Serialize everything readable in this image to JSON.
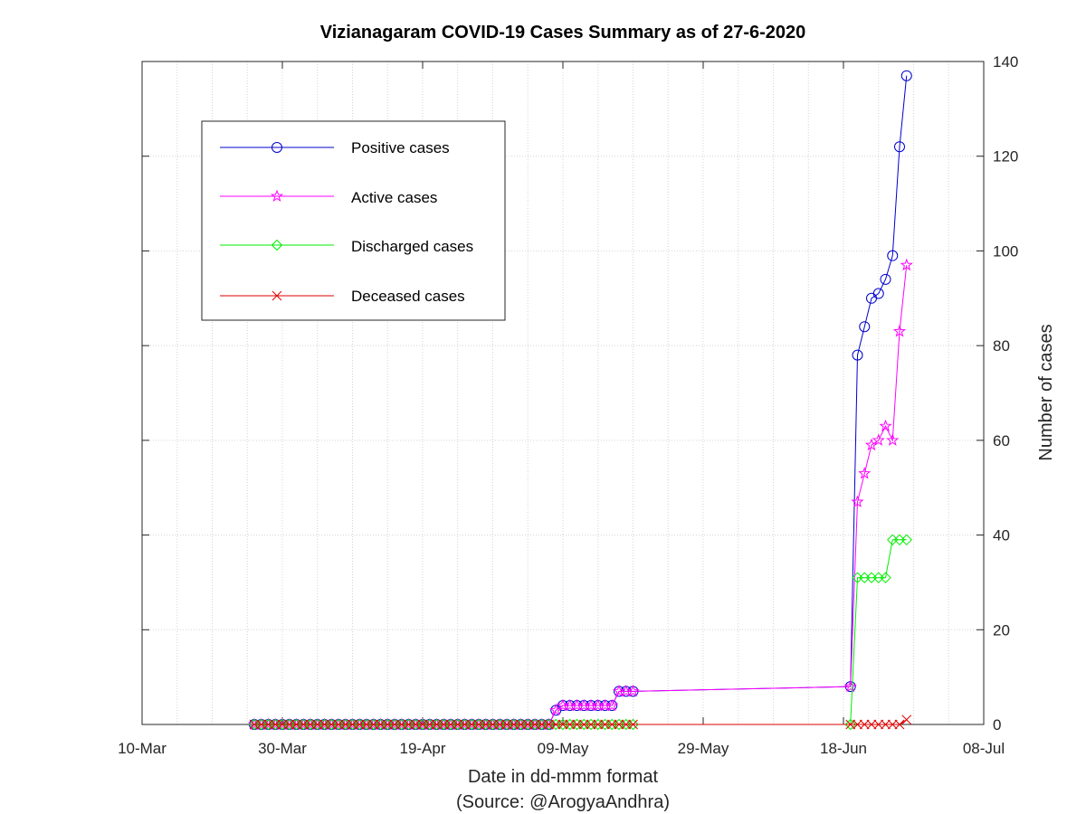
{
  "chart_data": {
    "type": "line",
    "title": "Vizianagaram COVID-19 Cases Summary as of 27-6-2020",
    "xlabel": "Date in dd-mmm format",
    "source": "(Source: @ArogyaAndhra)",
    "ylabel": "Number of cases",
    "xlim": [
      "2020-03-10",
      "2020-07-08"
    ],
    "ylim": [
      0,
      140
    ],
    "x_ticks": [
      "10-Mar",
      "30-Mar",
      "19-Apr",
      "09-May",
      "29-May",
      "18-Jun",
      "08-Jul"
    ],
    "y_ticks": [
      0,
      20,
      40,
      60,
      80,
      100,
      120,
      140
    ],
    "y_axis_side": "right",
    "grid": true,
    "legend_position": "top-left",
    "x": [
      "2020-03-26",
      "2020-03-27",
      "2020-03-28",
      "2020-03-29",
      "2020-03-30",
      "2020-03-31",
      "2020-04-01",
      "2020-04-02",
      "2020-04-03",
      "2020-04-04",
      "2020-04-05",
      "2020-04-06",
      "2020-04-07",
      "2020-04-08",
      "2020-04-09",
      "2020-04-10",
      "2020-04-11",
      "2020-04-12",
      "2020-04-13",
      "2020-04-14",
      "2020-04-15",
      "2020-04-16",
      "2020-04-17",
      "2020-04-18",
      "2020-04-19",
      "2020-04-20",
      "2020-04-21",
      "2020-04-22",
      "2020-04-23",
      "2020-04-24",
      "2020-04-25",
      "2020-04-26",
      "2020-04-27",
      "2020-04-28",
      "2020-04-29",
      "2020-04-30",
      "2020-05-01",
      "2020-05-02",
      "2020-05-03",
      "2020-05-04",
      "2020-05-05",
      "2020-05-06",
      "2020-05-07",
      "2020-05-08",
      "2020-05-09",
      "2020-05-10",
      "2020-05-11",
      "2020-05-12",
      "2020-05-13",
      "2020-05-14",
      "2020-05-15",
      "2020-05-16",
      "2020-05-17",
      "2020-05-18",
      "2020-05-19",
      "2020-06-19",
      "2020-06-20",
      "2020-06-21",
      "2020-06-22",
      "2020-06-23",
      "2020-06-24",
      "2020-06-25",
      "2020-06-26",
      "2020-06-27"
    ],
    "series": [
      {
        "name": "Positive cases",
        "color": "#0000cc",
        "marker": "circle",
        "values": [
          0,
          0,
          0,
          0,
          0,
          0,
          0,
          0,
          0,
          0,
          0,
          0,
          0,
          0,
          0,
          0,
          0,
          0,
          0,
          0,
          0,
          0,
          0,
          0,
          0,
          0,
          0,
          0,
          0,
          0,
          0,
          0,
          0,
          0,
          0,
          0,
          0,
          0,
          0,
          0,
          0,
          0,
          0,
          3,
          4,
          4,
          4,
          4,
          4,
          4,
          4,
          4,
          7,
          7,
          7,
          8,
          78,
          84,
          90,
          91,
          94,
          99,
          122,
          137
        ]
      },
      {
        "name": "Active cases",
        "color": "#ff00ff",
        "marker": "star",
        "values": [
          0,
          0,
          0,
          0,
          0,
          0,
          0,
          0,
          0,
          0,
          0,
          0,
          0,
          0,
          0,
          0,
          0,
          0,
          0,
          0,
          0,
          0,
          0,
          0,
          0,
          0,
          0,
          0,
          0,
          0,
          0,
          0,
          0,
          0,
          0,
          0,
          0,
          0,
          0,
          0,
          0,
          0,
          0,
          3,
          4,
          4,
          4,
          4,
          4,
          4,
          4,
          4,
          7,
          7,
          7,
          8,
          47,
          53,
          59,
          60,
          63,
          60,
          83,
          97
        ]
      },
      {
        "name": "Discharged cases",
        "color": "#00ee00",
        "marker": "diamond",
        "values": [
          0,
          0,
          0,
          0,
          0,
          0,
          0,
          0,
          0,
          0,
          0,
          0,
          0,
          0,
          0,
          0,
          0,
          0,
          0,
          0,
          0,
          0,
          0,
          0,
          0,
          0,
          0,
          0,
          0,
          0,
          0,
          0,
          0,
          0,
          0,
          0,
          0,
          0,
          0,
          0,
          0,
          0,
          0,
          0,
          0,
          0,
          0,
          0,
          0,
          0,
          0,
          0,
          0,
          0,
          0,
          0,
          31,
          31,
          31,
          31,
          31,
          39,
          39,
          39
        ]
      },
      {
        "name": "Deceased cases",
        "color": "#dd0000",
        "marker": "x",
        "values": [
          0,
          0,
          0,
          0,
          0,
          0,
          0,
          0,
          0,
          0,
          0,
          0,
          0,
          0,
          0,
          0,
          0,
          0,
          0,
          0,
          0,
          0,
          0,
          0,
          0,
          0,
          0,
          0,
          0,
          0,
          0,
          0,
          0,
          0,
          0,
          0,
          0,
          0,
          0,
          0,
          0,
          0,
          0,
          0,
          0,
          0,
          0,
          0,
          0,
          0,
          0,
          0,
          0,
          0,
          0,
          0,
          0,
          0,
          0,
          0,
          0,
          0,
          0,
          1
        ]
      }
    ]
  }
}
